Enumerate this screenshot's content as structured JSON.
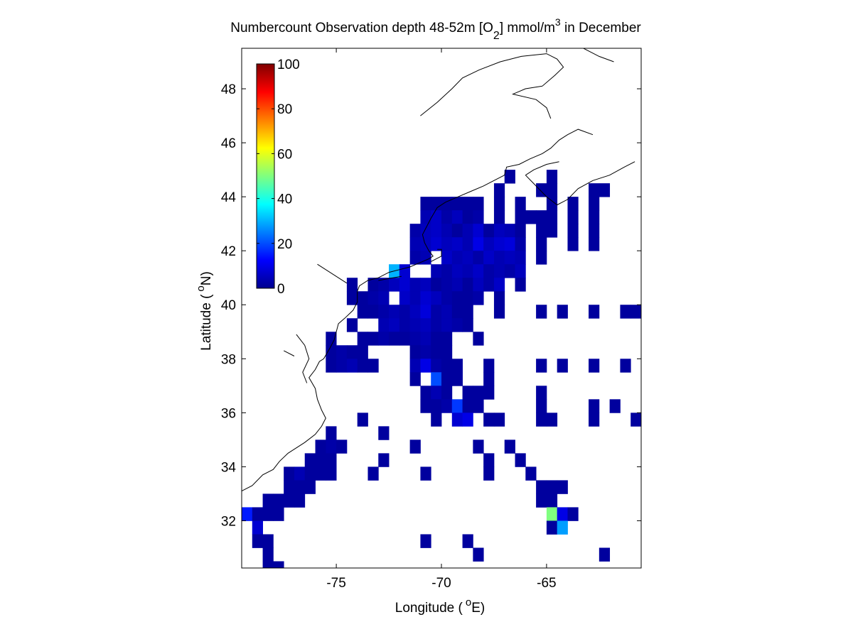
{
  "chart_data": {
    "type": "heatmap",
    "title_main": "Numbercount Observation depth 48-52m [O",
    "title_sub": "2",
    "title_units": "] mmol/m",
    "title_sup": "3",
    "title_end": " in December",
    "xlabel_pre": "Longitude (",
    "xlabel_sup": "o",
    "xlabel_post": "E)",
    "ylabel_pre": "Latitude (",
    "ylabel_sup": "o",
    "ylabel_post": "N)",
    "xlim": [
      -79.5,
      -60.5
    ],
    "ylim": [
      30.25,
      49.5
    ],
    "xticks": [
      -75,
      -70,
      -65
    ],
    "xtick_labels": [
      "-75",
      "-70",
      "-65"
    ],
    "yticks": [
      32,
      34,
      36,
      38,
      40,
      42,
      44,
      46,
      48
    ],
    "ytick_labels": [
      "32",
      "34",
      "36",
      "38",
      "40",
      "42",
      "44",
      "46",
      "48"
    ],
    "colorbar": {
      "colormap": "jet",
      "range": [
        0,
        100
      ],
      "ticks": [
        0,
        20,
        40,
        60,
        80,
        100
      ],
      "tick_labels": [
        "0",
        "20",
        "40",
        "60",
        "80",
        "100"
      ]
    },
    "cell_size_deg": 0.5,
    "cells_note": "each entry: [lon_center, lat_center, count]",
    "cells": [
      [
        -66.75,
        44.75,
        3
      ],
      [
        -64.75,
        44.75,
        3
      ],
      [
        -67.25,
        44.25,
        3
      ],
      [
        -65.25,
        44.25,
        3
      ],
      [
        -64.75,
        44.25,
        3
      ],
      [
        -62.75,
        44.25,
        3
      ],
      [
        -62.25,
        44.25,
        3
      ],
      [
        -70.75,
        43.75,
        3
      ],
      [
        -70.25,
        43.75,
        3
      ],
      [
        -69.75,
        43.75,
        3
      ],
      [
        -69.25,
        43.75,
        3
      ],
      [
        -68.75,
        43.75,
        3
      ],
      [
        -68.25,
        43.75,
        3
      ],
      [
        -67.25,
        43.75,
        3
      ],
      [
        -66.25,
        43.75,
        3
      ],
      [
        -64.75,
        43.75,
        3
      ],
      [
        -63.75,
        43.75,
        3
      ],
      [
        -62.75,
        43.75,
        3
      ],
      [
        -70.75,
        43.25,
        5
      ],
      [
        -70.25,
        43.25,
        7
      ],
      [
        -69.75,
        43.25,
        4
      ],
      [
        -69.25,
        43.25,
        6
      ],
      [
        -68.75,
        43.25,
        3
      ],
      [
        -68.25,
        43.25,
        4
      ],
      [
        -67.25,
        43.25,
        3
      ],
      [
        -66.25,
        43.25,
        3
      ],
      [
        -65.75,
        43.25,
        3
      ],
      [
        -65.25,
        43.25,
        3
      ],
      [
        -64.75,
        43.25,
        3
      ],
      [
        -63.75,
        43.25,
        3
      ],
      [
        -62.75,
        43.25,
        3
      ],
      [
        -71.25,
        42.75,
        4
      ],
      [
        -70.75,
        42.75,
        6
      ],
      [
        -70.25,
        42.75,
        7
      ],
      [
        -69.75,
        42.75,
        5
      ],
      [
        -69.25,
        42.75,
        3
      ],
      [
        -68.75,
        42.75,
        5
      ],
      [
        -68.25,
        42.75,
        8
      ],
      [
        -67.75,
        42.75,
        3
      ],
      [
        -67.25,
        42.75,
        6
      ],
      [
        -66.75,
        42.75,
        5
      ],
      [
        -66.25,
        42.75,
        3
      ],
      [
        -65.25,
        42.75,
        3
      ],
      [
        -64.75,
        42.75,
        3
      ],
      [
        -63.75,
        42.75,
        3
      ],
      [
        -62.75,
        42.75,
        3
      ],
      [
        -71.25,
        42.25,
        5
      ],
      [
        -70.75,
        42.25,
        6
      ],
      [
        -70.25,
        42.25,
        8
      ],
      [
        -69.75,
        42.25,
        6
      ],
      [
        -69.25,
        42.25,
        7
      ],
      [
        -68.75,
        42.25,
        5
      ],
      [
        -68.25,
        42.25,
        10
      ],
      [
        -67.75,
        42.25,
        6
      ],
      [
        -67.25,
        42.25,
        8
      ],
      [
        -66.75,
        42.25,
        9
      ],
      [
        -66.25,
        42.25,
        4
      ],
      [
        -65.25,
        42.25,
        3
      ],
      [
        -63.75,
        42.25,
        3
      ],
      [
        -62.75,
        42.25,
        3
      ],
      [
        -71.25,
        41.75,
        4
      ],
      [
        -70.75,
        41.75,
        5
      ],
      [
        -69.75,
        41.75,
        7
      ],
      [
        -69.25,
        41.75,
        5
      ],
      [
        -68.75,
        41.75,
        6
      ],
      [
        -68.25,
        41.75,
        4
      ],
      [
        -67.75,
        41.75,
        7
      ],
      [
        -67.25,
        41.75,
        5
      ],
      [
        -66.75,
        41.75,
        6
      ],
      [
        -66.25,
        41.75,
        5
      ],
      [
        -65.25,
        41.75,
        3
      ],
      [
        -72.25,
        41.25,
        30
      ],
      [
        -71.75,
        41.25,
        8
      ],
      [
        -70.25,
        41.25,
        5
      ],
      [
        -69.75,
        41.25,
        4
      ],
      [
        -69.25,
        41.25,
        6
      ],
      [
        -68.75,
        41.25,
        5
      ],
      [
        -68.25,
        41.25,
        7
      ],
      [
        -67.75,
        41.25,
        4
      ],
      [
        -67.25,
        41.25,
        5
      ],
      [
        -66.75,
        41.25,
        4
      ],
      [
        -66.25,
        41.25,
        6
      ],
      [
        -74.25,
        40.75,
        3
      ],
      [
        -73.25,
        40.75,
        3
      ],
      [
        -72.75,
        40.75,
        4
      ],
      [
        -72.25,
        40.75,
        6
      ],
      [
        -71.75,
        40.75,
        8
      ],
      [
        -71.25,
        40.75,
        5
      ],
      [
        -70.75,
        40.75,
        6
      ],
      [
        -70.25,
        40.75,
        3
      ],
      [
        -69.75,
        40.75,
        4
      ],
      [
        -69.25,
        40.75,
        5
      ],
      [
        -68.75,
        40.75,
        3
      ],
      [
        -68.25,
        40.75,
        6
      ],
      [
        -67.75,
        40.75,
        4
      ],
      [
        -67.25,
        40.75,
        7
      ],
      [
        -66.25,
        40.75,
        3
      ],
      [
        -74.25,
        40.25,
        3
      ],
      [
        -73.75,
        40.25,
        3
      ],
      [
        -73.25,
        40.25,
        4
      ],
      [
        -72.75,
        40.25,
        5
      ],
      [
        -71.75,
        40.25,
        7
      ],
      [
        -71.25,
        40.25,
        5
      ],
      [
        -70.75,
        40.25,
        8
      ],
      [
        -70.25,
        40.25,
        6
      ],
      [
        -69.75,
        40.25,
        4
      ],
      [
        -69.25,
        40.25,
        3
      ],
      [
        -68.75,
        40.25,
        3
      ],
      [
        -68.25,
        40.25,
        4
      ],
      [
        -67.25,
        40.25,
        3
      ],
      [
        -73.75,
        39.75,
        3
      ],
      [
        -73.25,
        39.75,
        3
      ],
      [
        -72.75,
        39.75,
        4
      ],
      [
        -72.25,
        39.75,
        5
      ],
      [
        -71.75,
        39.75,
        4
      ],
      [
        -71.25,
        39.75,
        6
      ],
      [
        -70.75,
        39.75,
        9
      ],
      [
        -70.25,
        39.75,
        4
      ],
      [
        -69.75,
        39.75,
        5
      ],
      [
        -69.25,
        39.75,
        3
      ],
      [
        -68.75,
        39.75,
        3
      ],
      [
        -67.25,
        39.75,
        3
      ],
      [
        -65.25,
        39.75,
        3
      ],
      [
        -64.25,
        39.75,
        3
      ],
      [
        -62.75,
        39.75,
        3
      ],
      [
        -61.25,
        39.75,
        3
      ],
      [
        -60.75,
        39.75,
        3
      ],
      [
        -74.25,
        39.25,
        3
      ],
      [
        -72.75,
        39.25,
        5
      ],
      [
        -72.25,
        39.25,
        6
      ],
      [
        -71.75,
        39.25,
        4
      ],
      [
        -71.25,
        39.25,
        5
      ],
      [
        -70.75,
        39.25,
        6
      ],
      [
        -70.25,
        39.25,
        4
      ],
      [
        -69.75,
        39.25,
        5
      ],
      [
        -69.25,
        39.25,
        4
      ],
      [
        -68.75,
        39.25,
        3
      ],
      [
        -75.25,
        38.75,
        3
      ],
      [
        -73.75,
        38.75,
        3
      ],
      [
        -73.25,
        38.75,
        3
      ],
      [
        -72.75,
        38.75,
        4
      ],
      [
        -72.25,
        38.75,
        3
      ],
      [
        -71.75,
        38.75,
        3
      ],
      [
        -71.25,
        38.75,
        4
      ],
      [
        -70.75,
        38.75,
        5
      ],
      [
        -70.25,
        38.75,
        3
      ],
      [
        -69.75,
        38.75,
        3
      ],
      [
        -68.25,
        38.75,
        3
      ],
      [
        -75.25,
        38.25,
        3
      ],
      [
        -74.75,
        38.25,
        4
      ],
      [
        -74.25,
        38.25,
        3
      ],
      [
        -73.75,
        38.25,
        3
      ],
      [
        -71.25,
        38.25,
        3
      ],
      [
        -70.75,
        38.25,
        4
      ],
      [
        -70.25,
        38.25,
        3
      ],
      [
        -69.75,
        38.25,
        3
      ],
      [
        -75.25,
        37.75,
        3
      ],
      [
        -74.75,
        37.75,
        4
      ],
      [
        -74.25,
        37.75,
        5
      ],
      [
        -73.75,
        37.75,
        3
      ],
      [
        -73.25,
        37.75,
        3
      ],
      [
        -71.25,
        37.75,
        5
      ],
      [
        -70.75,
        37.75,
        10
      ],
      [
        -70.25,
        37.75,
        4
      ],
      [
        -69.75,
        37.75,
        3
      ],
      [
        -69.25,
        37.75,
        3
      ],
      [
        -67.75,
        37.75,
        3
      ],
      [
        -65.25,
        37.75,
        3
      ],
      [
        -64.25,
        37.75,
        3
      ],
      [
        -62.75,
        37.75,
        3
      ],
      [
        -61.25,
        37.75,
        3
      ],
      [
        -71.25,
        37.25,
        3
      ],
      [
        -70.25,
        37.25,
        20
      ],
      [
        -69.75,
        37.25,
        3
      ],
      [
        -69.25,
        37.25,
        3
      ],
      [
        -67.75,
        37.25,
        3
      ],
      [
        -70.75,
        36.75,
        3
      ],
      [
        -70.25,
        36.75,
        5
      ],
      [
        -69.75,
        36.75,
        3
      ],
      [
        -68.75,
        36.75,
        3
      ],
      [
        -68.25,
        36.75,
        3
      ],
      [
        -67.75,
        36.75,
        3
      ],
      [
        -65.25,
        36.75,
        3
      ],
      [
        -70.75,
        36.25,
        3
      ],
      [
        -70.25,
        36.25,
        3
      ],
      [
        -69.75,
        36.25,
        4
      ],
      [
        -69.25,
        36.25,
        18
      ],
      [
        -68.75,
        36.25,
        3
      ],
      [
        -68.25,
        36.25,
        3
      ],
      [
        -65.25,
        36.25,
        3
      ],
      [
        -62.75,
        36.25,
        3
      ],
      [
        -61.75,
        36.25,
        3
      ],
      [
        -73.75,
        35.75,
        3
      ],
      [
        -70.25,
        35.75,
        3
      ],
      [
        -69.25,
        35.75,
        8
      ],
      [
        -68.75,
        35.75,
        10
      ],
      [
        -67.75,
        35.75,
        3
      ],
      [
        -67.25,
        35.75,
        3
      ],
      [
        -65.25,
        35.75,
        3
      ],
      [
        -64.75,
        35.75,
        3
      ],
      [
        -62.75,
        35.75,
        3
      ],
      [
        -60.75,
        35.75,
        3
      ],
      [
        -75.25,
        35.25,
        3
      ],
      [
        -72.75,
        35.25,
        3
      ],
      [
        -75.75,
        34.75,
        3
      ],
      [
        -75.25,
        34.75,
        4
      ],
      [
        -74.75,
        34.75,
        3
      ],
      [
        -71.25,
        34.75,
        3
      ],
      [
        -68.25,
        34.75,
        3
      ],
      [
        -66.75,
        34.75,
        3
      ],
      [
        -76.25,
        34.25,
        3
      ],
      [
        -75.75,
        34.25,
        3
      ],
      [
        -75.25,
        34.25,
        3
      ],
      [
        -72.75,
        34.25,
        3
      ],
      [
        -67.75,
        34.25,
        3
      ],
      [
        -66.25,
        34.25,
        3
      ],
      [
        -77.25,
        33.75,
        3
      ],
      [
        -76.75,
        33.75,
        5
      ],
      [
        -76.25,
        33.75,
        3
      ],
      [
        -75.75,
        33.75,
        3
      ],
      [
        -75.25,
        33.75,
        3
      ],
      [
        -73.25,
        33.75,
        3
      ],
      [
        -70.75,
        33.75,
        3
      ],
      [
        -67.75,
        33.75,
        3
      ],
      [
        -65.75,
        33.75,
        3
      ],
      [
        -77.25,
        33.25,
        3
      ],
      [
        -76.75,
        33.25,
        3
      ],
      [
        -76.25,
        33.25,
        3
      ],
      [
        -65.25,
        33.25,
        3
      ],
      [
        -64.75,
        33.25,
        3
      ],
      [
        -64.25,
        33.25,
        3
      ],
      [
        -78.25,
        32.75,
        3
      ],
      [
        -77.75,
        32.75,
        3
      ],
      [
        -77.25,
        32.75,
        3
      ],
      [
        -76.75,
        32.75,
        3
      ],
      [
        -65.25,
        32.75,
        3
      ],
      [
        -64.75,
        32.75,
        3
      ],
      [
        -79.25,
        32.25,
        15
      ],
      [
        -78.75,
        32.25,
        3
      ],
      [
        -78.25,
        32.25,
        3
      ],
      [
        -77.75,
        32.25,
        3
      ],
      [
        -64.75,
        32.25,
        50
      ],
      [
        -64.25,
        32.25,
        10
      ],
      [
        -63.75,
        32.25,
        3
      ],
      [
        -78.75,
        31.75,
        8
      ],
      [
        -64.75,
        31.75,
        3
      ],
      [
        -64.25,
        31.75,
        28
      ],
      [
        -78.75,
        31.25,
        3
      ],
      [
        -78.25,
        31.25,
        3
      ],
      [
        -70.75,
        31.25,
        3
      ],
      [
        -68.75,
        31.25,
        3
      ],
      [
        -78.25,
        30.75,
        3
      ],
      [
        -68.25,
        30.75,
        3
      ],
      [
        -62.25,
        30.75,
        3
      ],
      [
        -78.25,
        30.25,
        3
      ],
      [
        -77.75,
        30.25,
        3
      ]
    ]
  },
  "colors": {
    "axes": "#000000",
    "coast": "#000000",
    "background": "#ffffff"
  }
}
